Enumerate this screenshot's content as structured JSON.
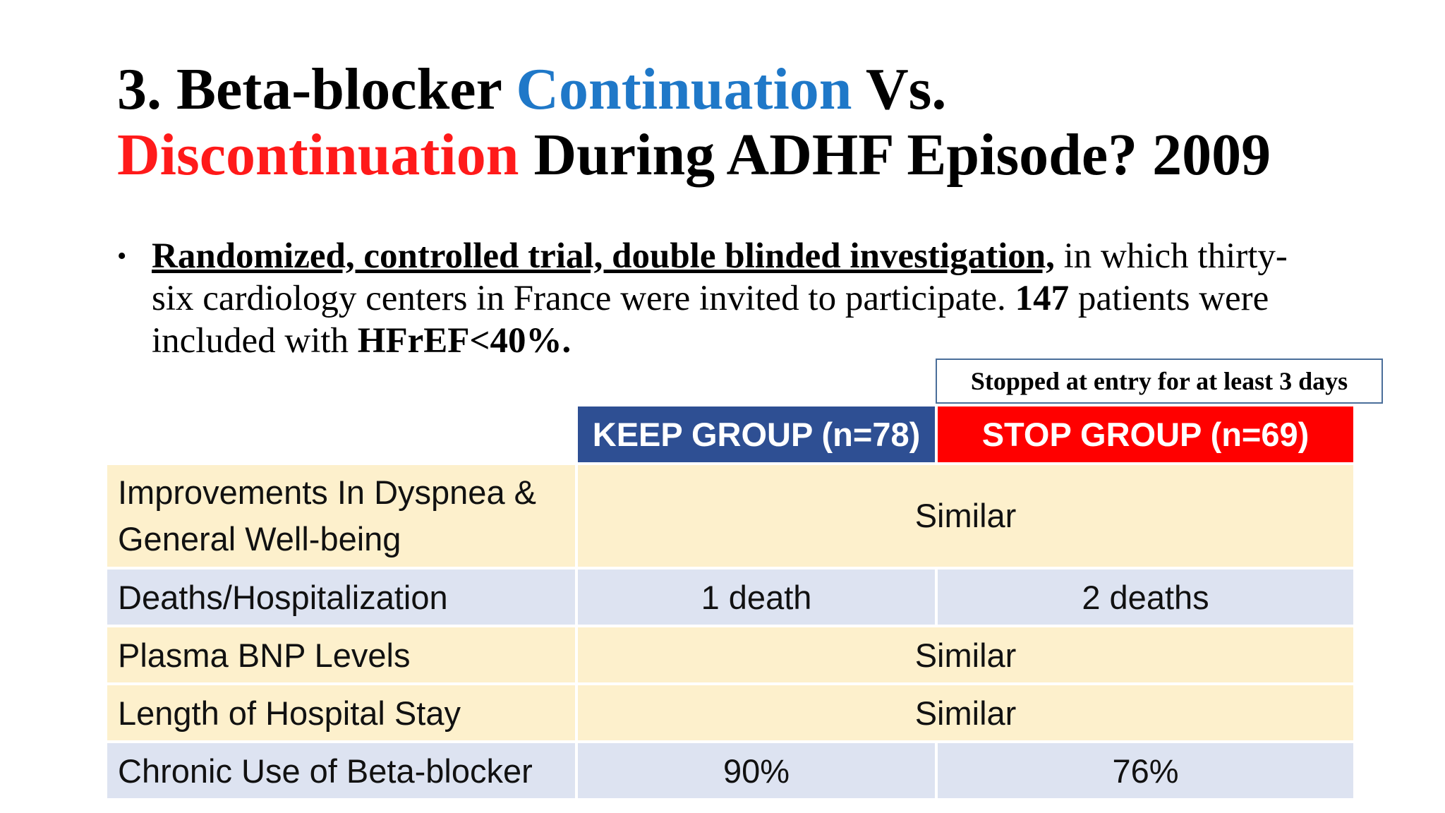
{
  "slide": {
    "title": {
      "part1": "3. Beta-blocker ",
      "part2": "Continuation",
      "part3": " Vs.",
      "part4": "Discontinuation",
      "part5": " During ADHF Episode? 2009"
    },
    "bullet": {
      "underlined": "Randomized, controlled trial, double blinded investigation,",
      "text1": " in which thirty-six cardiology centers in France were invited to participate. ",
      "bold1": "147",
      "text2": " patients were included with ",
      "bold2": "HFrEF<40%."
    },
    "note": "Stopped at entry for at least 3 days",
    "colors": {
      "continuation": "#1f78c8",
      "discontinuation": "#ff1a1a",
      "keep_header": "#2e4f93",
      "stop_header": "#ff0000",
      "row_yellow": "#fdf0cc",
      "row_blue": "#dde3f1"
    }
  },
  "table": {
    "headers": {
      "keep": "KEEP GROUP (n=78)",
      "stop": "STOP GROUP (n=69)"
    },
    "rows": [
      {
        "label": "Improvements In Dyspnea & General Well-being",
        "merged": "Similar"
      },
      {
        "label": "Deaths/Hospitalization",
        "keep": "1 death",
        "stop": "2 deaths"
      },
      {
        "label": "Plasma BNP Levels",
        "merged": "Similar"
      },
      {
        "label": "Length of Hospital Stay",
        "merged": "Similar"
      },
      {
        "label": "Chronic Use of Beta-blocker",
        "keep": "90%",
        "stop": "76%"
      }
    ]
  }
}
